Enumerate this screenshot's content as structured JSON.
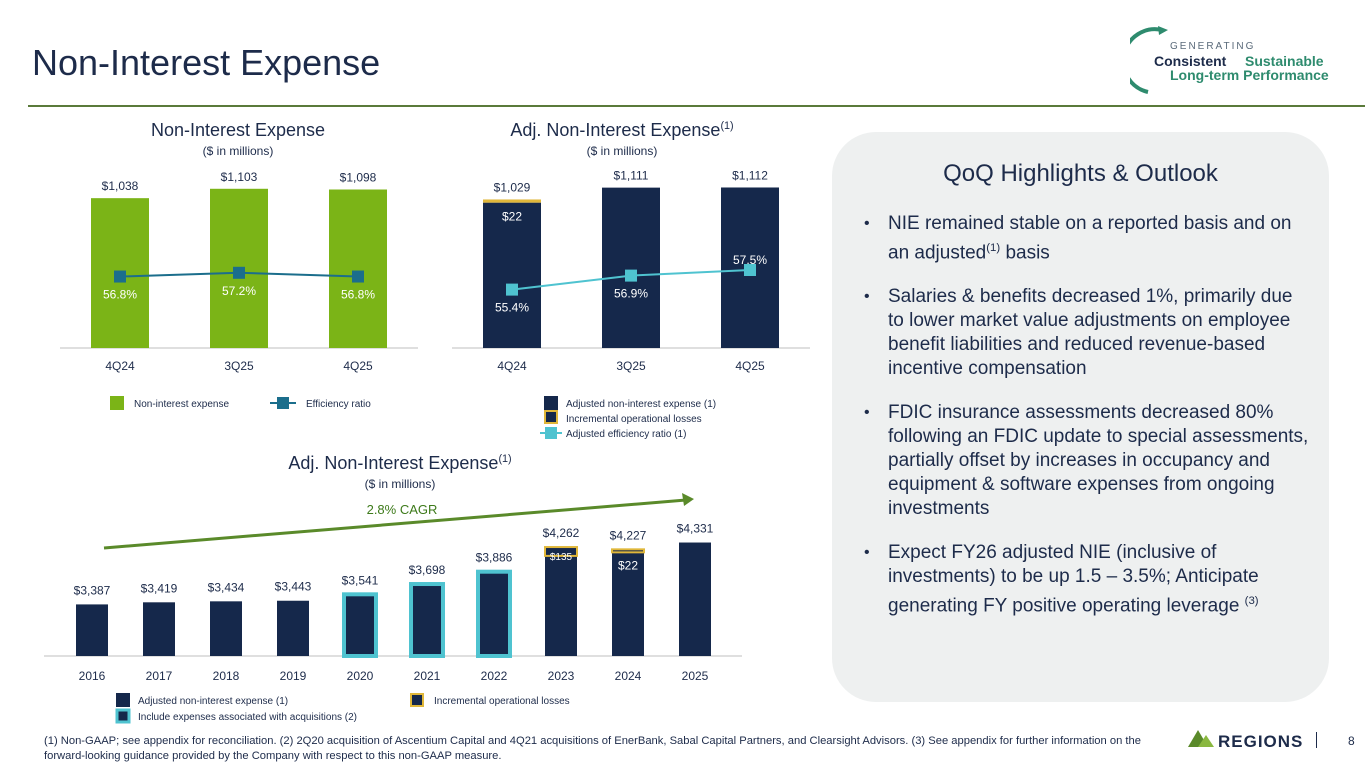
{
  "page": {
    "title": "Non-Interest Expense",
    "number": "8",
    "footnote": "(1) Non-GAAP; see appendix for reconciliation. (2) 2Q20 acquisition of Ascentium Capital and 4Q21 acquisitions of EnerBank, Sabal Capital Partners, and Clearsight Advisors.  (3)  See appendix for further information on the forward-looking guidance provided by the Company with respect to this non-GAAP measure."
  },
  "brand": {
    "generating": "GENERATING",
    "consistent": "Consistent",
    "sustainable": "Sustainable",
    "long_term": "Long-term Performance",
    "regions": "REGIONS"
  },
  "colors": {
    "navy": "#15284b",
    "green": "#7bb417",
    "teal": "#1b6e8c",
    "cyan": "#4fc3d0",
    "gold": "#e0b73a",
    "gray_axis": "#bfbfbf",
    "panel": "#eef0f0"
  },
  "highlights": {
    "title": "QoQ Highlights & Outlook",
    "bullets": [
      {
        "text": "NIE remained stable on a reported basis and on an adjusted",
        "sup": "(1)",
        "tail": " basis"
      },
      {
        "text": "Salaries & benefits decreased 1%, primarily due to lower market value adjustments on employee benefit liabilities and reduced revenue-based incentive compensation",
        "sup": "",
        "tail": ""
      },
      {
        "text": "FDIC insurance assessments decreased 80% following an FDIC update to special assessments, partially offset by increases in occupancy and equipment & software expenses from ongoing investments",
        "sup": "",
        "tail": ""
      },
      {
        "text": "Expect FY26 adjusted NIE (inclusive of investments) to be up 1.5 – 3.5%; Anticipate generating FY positive operating leverage ",
        "sup": "(3)",
        "tail": ""
      }
    ]
  },
  "chart_data": [
    {
      "type": "bar",
      "title": "Non-Interest Expense",
      "subtitle": "($ in millions)",
      "categories": [
        "4Q24",
        "3Q25",
        "4Q25"
      ],
      "series": [
        {
          "name": "Non-interest expense",
          "values": [
            1038,
            1103,
            1098
          ],
          "labels": [
            "$1,038",
            "$1,103",
            "$1,098"
          ]
        },
        {
          "name": "Efficiency ratio",
          "kind": "line",
          "values": [
            56.8,
            57.2,
            56.8
          ],
          "labels": [
            "56.8%",
            "57.2%",
            "56.8%"
          ]
        }
      ],
      "legend": [
        "Non-interest expense",
        "Efficiency ratio"
      ],
      "ylim": [
        0,
        1150
      ]
    },
    {
      "type": "bar",
      "title": "Adj. Non-Interest Expense",
      "title_sup": "(1)",
      "subtitle": "($ in millions)",
      "categories": [
        "4Q24",
        "3Q25",
        "4Q25"
      ],
      "series": [
        {
          "name": "Adjusted non-interest expense",
          "values": [
            1007,
            1111,
            1112
          ]
        },
        {
          "name": "Incremental operational losses",
          "values": [
            22,
            0,
            0
          ],
          "labels": [
            "$22",
            "",
            ""
          ]
        },
        {
          "name": "Adjusted efficiency ratio",
          "kind": "line",
          "values": [
            55.4,
            56.9,
            57.5
          ],
          "labels": [
            "55.4%",
            "56.9%",
            "57.5%"
          ]
        }
      ],
      "total_labels": [
        "$1,029",
        "$1,111",
        "$1,112"
      ],
      "legend": [
        "Adjusted non-interest expense (1)",
        "Incremental operational losses",
        "Adjusted efficiency ratio (1)"
      ],
      "ylim": [
        0,
        1150
      ]
    },
    {
      "type": "bar",
      "title": "Adj. Non-Interest Expense",
      "title_sup": "(1)",
      "subtitle": "($ in millions)",
      "categories": [
        "2016",
        "2017",
        "2018",
        "2019",
        "2020",
        "2021",
        "2022",
        "2023",
        "2024",
        "2025"
      ],
      "series": [
        {
          "name": "Adjusted non-interest expense",
          "values": [
            3387,
            3419,
            3434,
            3443,
            3541,
            3698,
            3886,
            4127,
            4205,
            4331
          ]
        },
        {
          "name": "Incremental operational losses",
          "values": [
            0,
            0,
            0,
            0,
            0,
            0,
            0,
            135,
            22,
            0
          ],
          "labels": [
            "",
            "",
            "",
            "",
            "",
            "",
            "",
            "$135",
            "$22",
            ""
          ]
        }
      ],
      "acquisition_years": [
        "2020",
        "2021",
        "2022"
      ],
      "total_labels": [
        "$3,387",
        "$3,419",
        "$3,434",
        "$3,443",
        "$3,541",
        "$3,698",
        "$3,886",
        "$4,262",
        "$4,227",
        "$4,331"
      ],
      "annotation": "2.8% CAGR",
      "legend": [
        "Adjusted non-interest expense (1)",
        "Include expenses associated with acquisitions (2)",
        "Incremental operational losses"
      ],
      "ylim": [
        0,
        4400
      ]
    }
  ]
}
